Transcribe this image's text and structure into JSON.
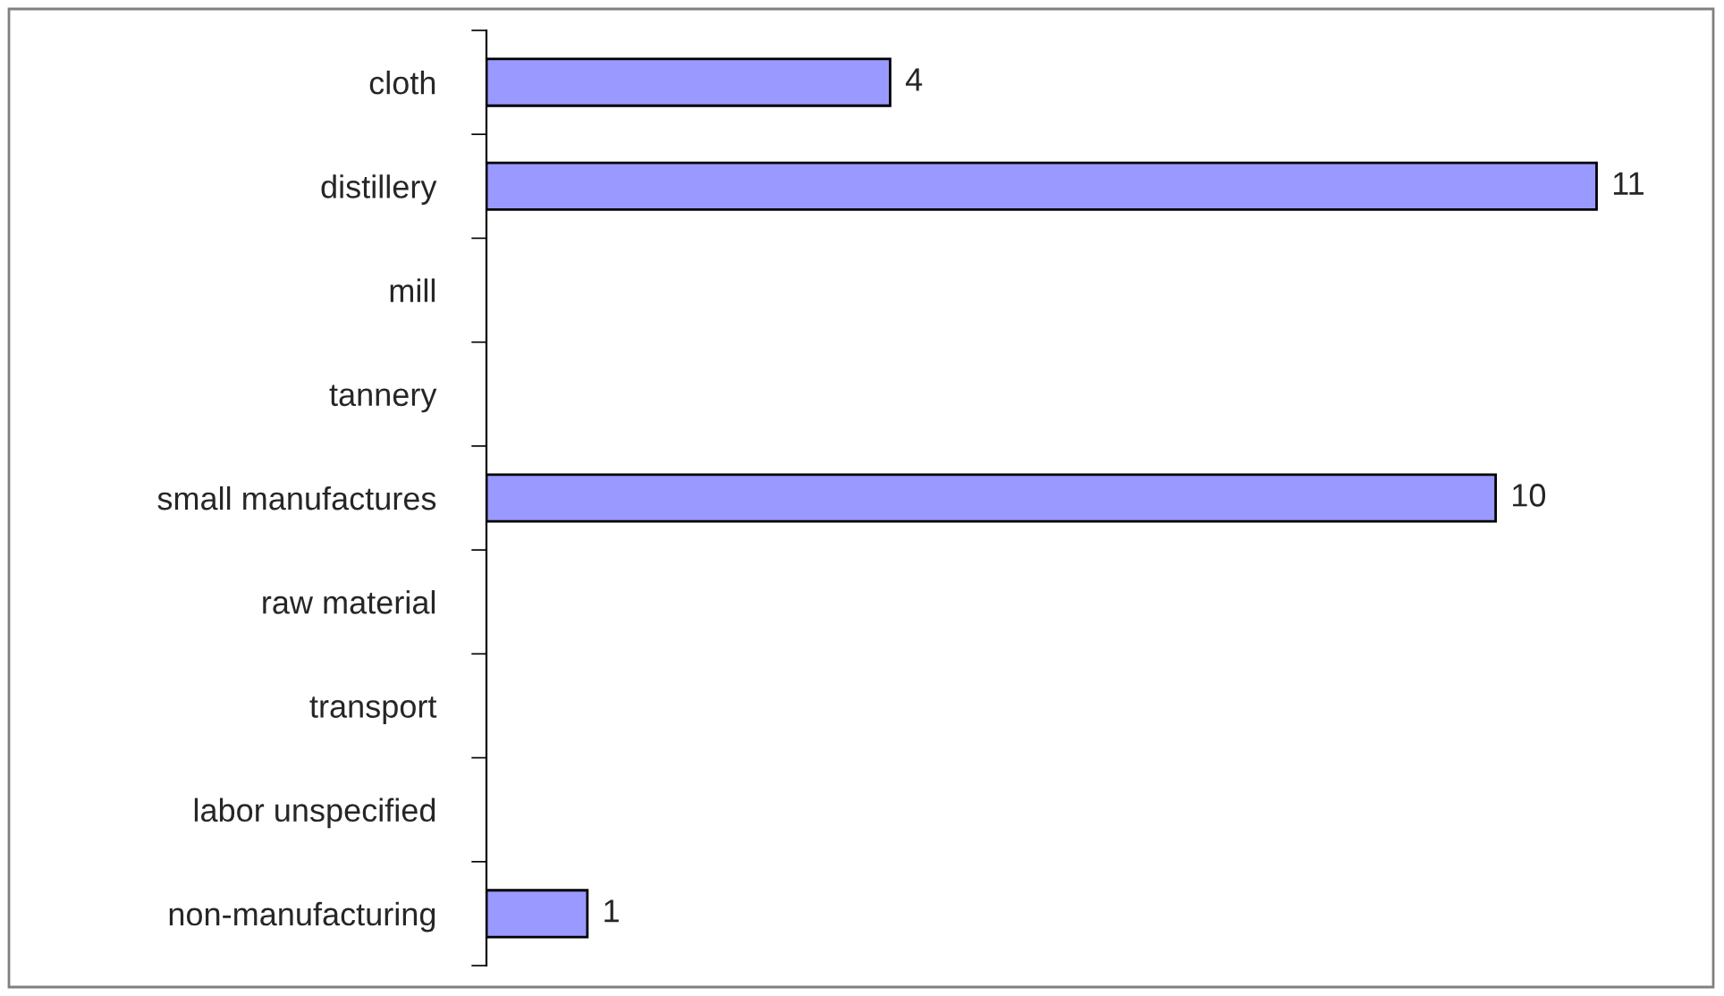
{
  "chart_data": {
    "type": "bar",
    "orientation": "horizontal",
    "categories": [
      "cloth",
      "distillery",
      "mill",
      "tannery",
      "small manufactures",
      "raw material",
      "transport",
      "labor unspecified",
      "non-manufacturing"
    ],
    "values": [
      4,
      11,
      0,
      0,
      10,
      0,
      0,
      0,
      1
    ],
    "value_labels": [
      "4",
      "11",
      null,
      null,
      "10",
      null,
      null,
      null,
      "1"
    ],
    "color": "#9999ff",
    "tick_labels": "y",
    "grid": false,
    "legend": false
  }
}
